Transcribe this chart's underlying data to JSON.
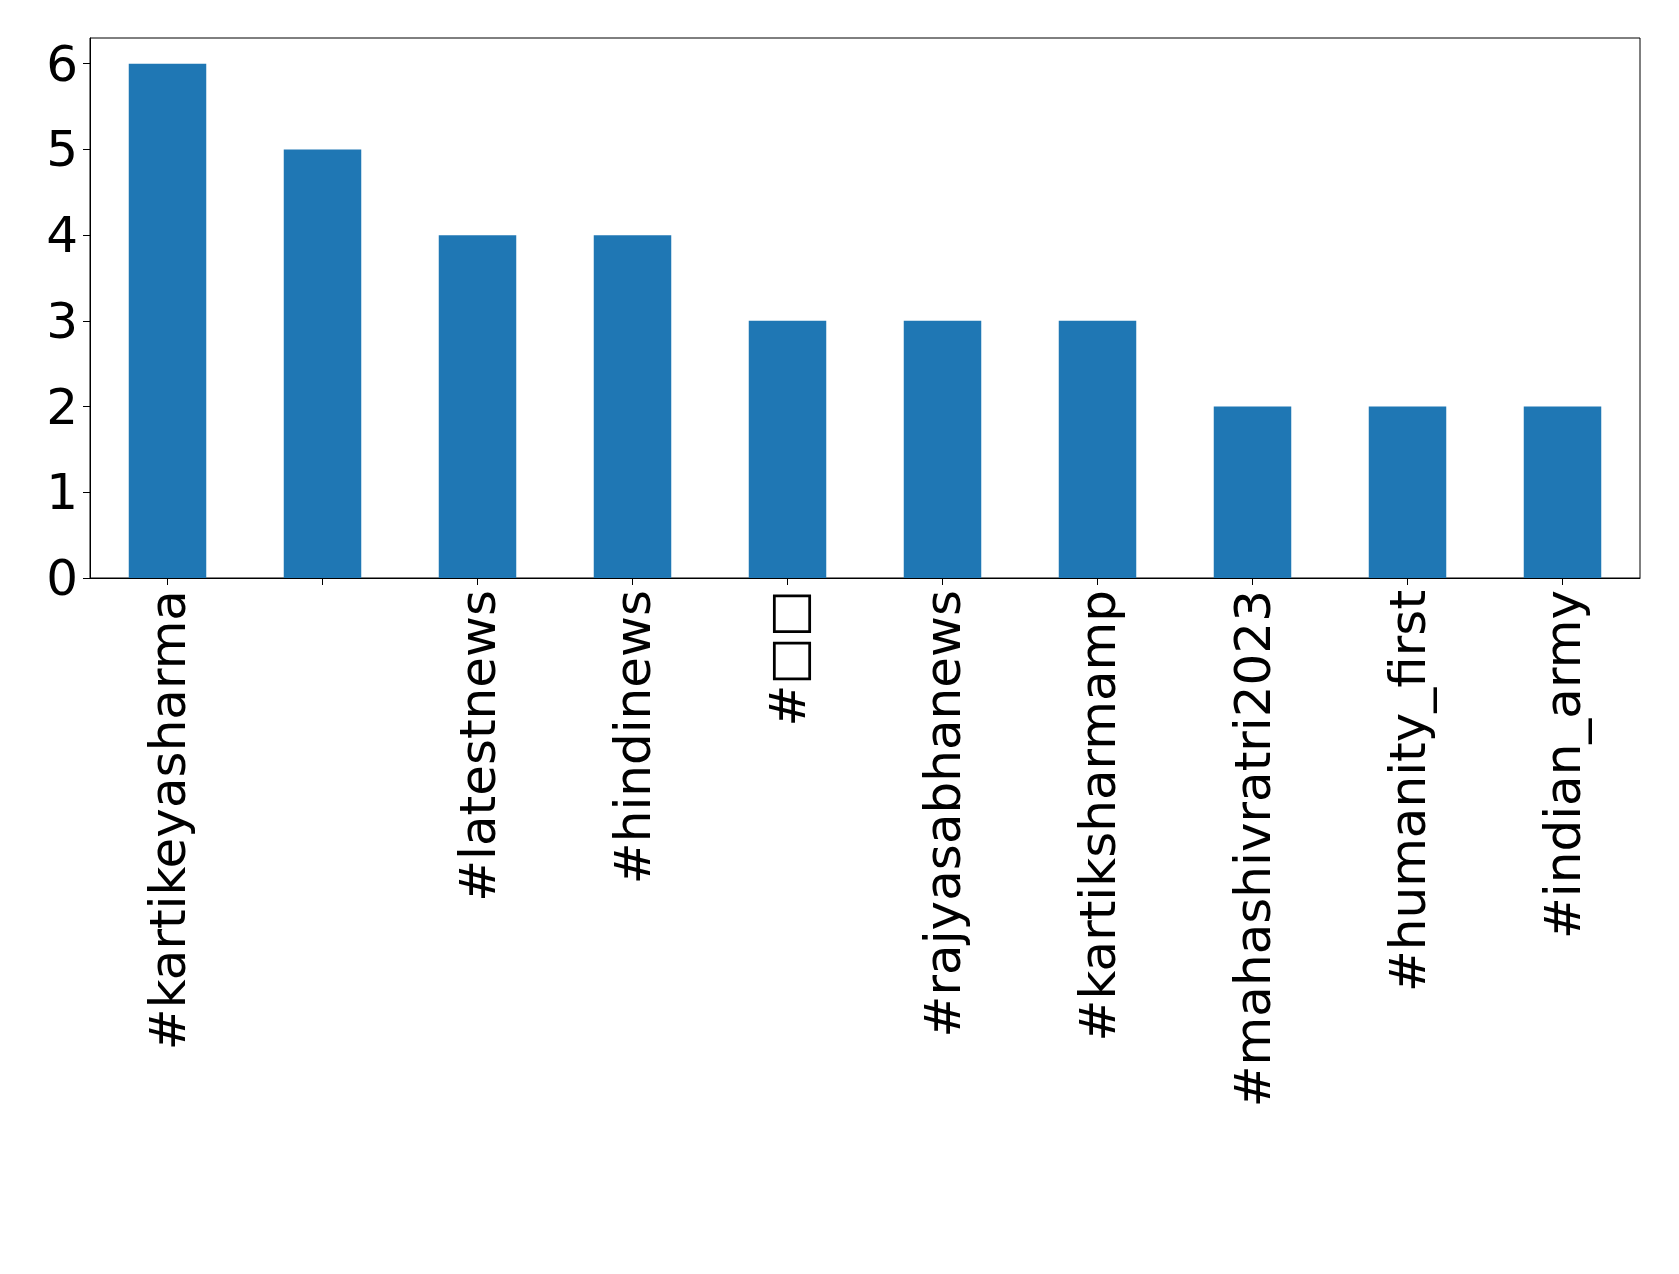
{
  "chart_data": {
    "type": "bar",
    "categories": [
      "#kartikeyasharma",
      null,
      "#latestnews",
      "#hindinews",
      "#□□",
      "#rajyasabhanews",
      "#kartiksharmamp",
      "#mahashivratri2023",
      "#humanity_first",
      "#indian_army"
    ],
    "values": [
      6,
      5,
      4,
      4,
      3,
      3,
      3,
      2,
      2,
      2
    ],
    "color": "#1f77b4",
    "ylim": [
      0,
      6.3
    ],
    "yticks": [
      0,
      1,
      2,
      3,
      4,
      5,
      6
    ],
    "grid": false
  }
}
